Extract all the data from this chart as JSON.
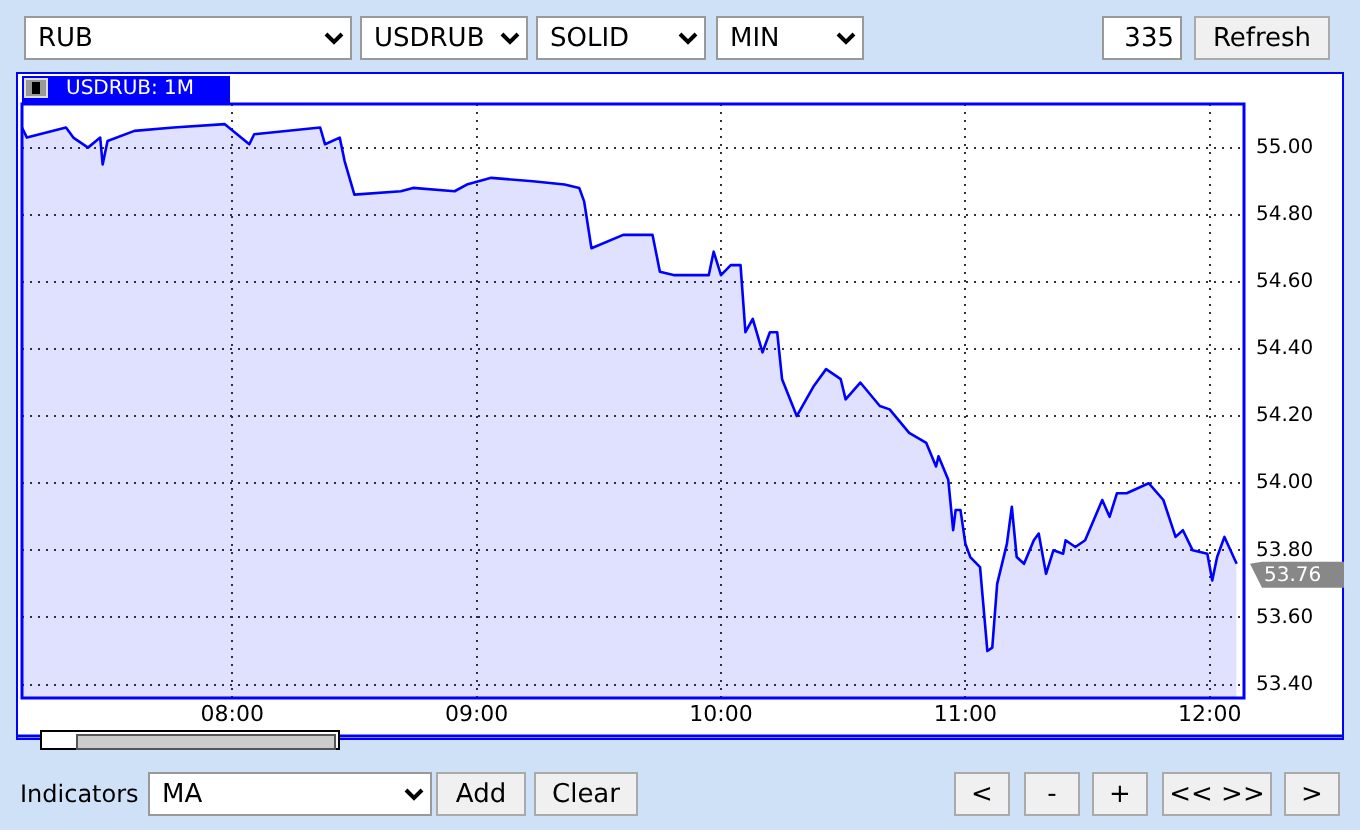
{
  "chart_data": {
    "type": "area",
    "title": "USDRUB: 1M",
    "x": [
      7.14,
      7.16,
      7.32,
      7.35,
      7.41,
      7.46,
      7.47,
      7.49,
      7.6,
      7.76,
      7.97,
      8.07,
      8.09,
      8.36,
      8.38,
      8.44,
      8.46,
      8.5,
      8.69,
      8.74,
      8.91,
      8.96,
      9.06,
      9.23,
      9.36,
      9.42,
      9.44,
      9.47,
      9.6,
      9.72,
      9.75,
      9.81,
      9.95,
      9.97,
      10.0,
      10.04,
      10.08,
      10.1,
      10.13,
      10.17,
      10.2,
      10.23,
      10.25,
      10.31,
      10.38,
      10.43,
      10.49,
      10.51,
      10.57,
      10.65,
      10.69,
      10.77,
      10.84,
      10.88,
      10.89,
      10.93,
      10.95,
      10.96,
      10.98,
      11.0,
      11.02,
      11.06,
      11.09,
      11.11,
      11.13,
      11.17,
      11.19,
      11.21,
      11.24,
      11.28,
      11.3,
      11.33,
      11.36,
      11.4,
      11.41,
      11.45,
      11.49,
      11.56,
      11.59,
      11.62,
      11.66,
      11.75,
      11.81,
      11.86,
      11.89,
      11.93,
      11.99,
      12.01,
      12.03,
      12.06,
      12.11
    ],
    "series": [
      {
        "color": "#0000ff",
        "values": [
          55.06,
          55.03,
          55.06,
          55.03,
          55.0,
          55.03,
          54.95,
          55.02,
          55.05,
          55.06,
          55.07,
          55.01,
          55.04,
          55.06,
          55.01,
          55.03,
          54.96,
          54.86,
          54.87,
          54.88,
          54.87,
          54.89,
          54.91,
          54.9,
          54.89,
          54.88,
          54.84,
          54.7,
          54.74,
          54.74,
          54.63,
          54.62,
          54.62,
          54.69,
          54.62,
          54.65,
          54.65,
          54.45,
          54.49,
          54.39,
          54.45,
          54.45,
          54.31,
          54.2,
          54.29,
          54.34,
          54.31,
          54.25,
          54.3,
          54.23,
          54.22,
          54.15,
          54.12,
          54.05,
          54.08,
          54.01,
          53.86,
          53.92,
          53.92,
          53.82,
          53.78,
          53.75,
          53.5,
          53.51,
          53.7,
          53.82,
          53.93,
          53.78,
          53.76,
          53.83,
          53.85,
          53.73,
          53.8,
          53.79,
          53.83,
          53.81,
          53.83,
          53.95,
          53.9,
          53.97,
          53.97,
          54.0,
          53.95,
          53.84,
          53.86,
          53.8,
          53.79,
          53.71,
          53.78,
          53.84,
          53.76
        ]
      }
    ],
    "xlim": [
      7.14,
      12.14
    ],
    "xticks": [
      {
        "value": 8,
        "label": "08:00"
      },
      {
        "value": 9,
        "label": "09:00"
      },
      {
        "value": 10,
        "label": "10:00"
      },
      {
        "value": 11,
        "label": "11:00"
      },
      {
        "value": 12,
        "label": "12:00"
      }
    ],
    "ylim": [
      53.36,
      55.13
    ],
    "yticks": [
      {
        "value": 53.4,
        "label": "53.40"
      },
      {
        "value": 53.6,
        "label": "53.60"
      },
      {
        "value": 53.8,
        "label": "53.80"
      },
      {
        "value": 54,
        "label": "54.00"
      },
      {
        "value": 54.2,
        "label": "54.20"
      },
      {
        "value": 54.4,
        "label": "54.40"
      },
      {
        "value": 54.6,
        "label": "54.60"
      },
      {
        "value": 54.8,
        "label": "54.80"
      },
      {
        "value": 55,
        "label": "55.00"
      }
    ],
    "grid": true,
    "legend": false,
    "marker": "none",
    "line_style": "solid",
    "annotations": [
      "RUB",
      "USDRUB",
      "SOLID",
      "MIN",
      "335",
      "Refresh",
      "Indicators",
      "MA",
      "Add",
      "Clear",
      "<",
      "-",
      "+",
      "<< >>",
      ">",
      "53.76"
    ]
  }
}
